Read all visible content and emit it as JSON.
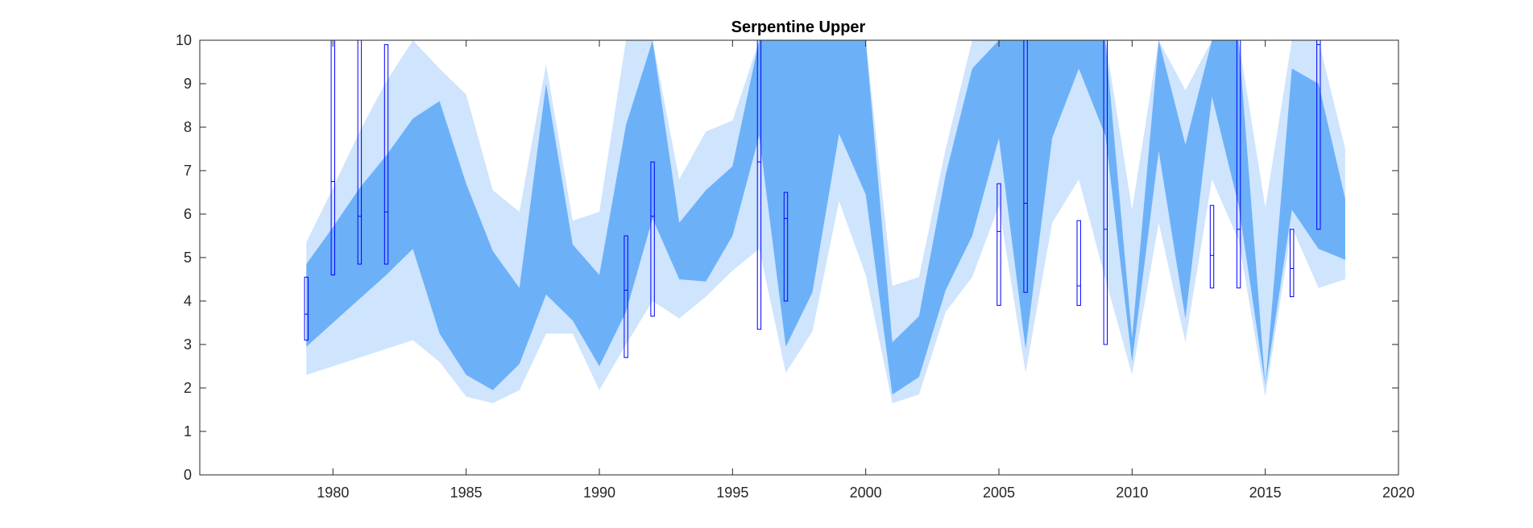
{
  "chart_data": {
    "type": "area",
    "title": "Serpentine Upper",
    "xlabel": "",
    "ylabel": "",
    "xlim": [
      1975,
      2020
    ],
    "ylim": [
      0,
      10
    ],
    "xticks": [
      1980,
      1985,
      1990,
      1995,
      2000,
      2005,
      2010,
      2015,
      2020
    ],
    "yticks": [
      0,
      1,
      2,
      3,
      4,
      5,
      6,
      7,
      8,
      9,
      10
    ],
    "grid": false,
    "colors": {
      "outer_band": "#cfe4fd",
      "inner_band": "#6cb1f8",
      "box": "#0000ff",
      "axis": "#262626"
    },
    "bands": {
      "x": [
        1979,
        1980,
        1981,
        1982,
        1983,
        1984,
        1985,
        1986,
        1987,
        1988,
        1989,
        1990,
        1991,
        1992,
        1993,
        1994,
        1995,
        1996,
        1997,
        1998,
        1999,
        2000,
        2001,
        2002,
        2003,
        2004,
        2005,
        2006,
        2007,
        2008,
        2009,
        2010,
        2011,
        2012,
        2013,
        2014,
        2015,
        2016,
        2017,
        2018
      ],
      "outer_low": [
        2.3,
        2.5,
        2.7,
        2.9,
        3.1,
        2.6,
        1.8,
        1.65,
        1.95,
        3.25,
        3.25,
        1.95,
        3.0,
        4.0,
        3.6,
        4.1,
        4.7,
        5.2,
        2.35,
        3.3,
        6.3,
        4.6,
        1.65,
        1.85,
        3.75,
        4.55,
        6.2,
        2.35,
        5.8,
        6.8,
        4.5,
        2.3,
        5.8,
        3.05,
        6.8,
        5.4,
        1.8,
        5.7,
        4.3,
        4.5
      ],
      "inner_low": [
        2.95,
        3.5,
        4.05,
        4.6,
        5.2,
        3.25,
        2.3,
        1.95,
        2.55,
        4.15,
        3.55,
        2.5,
        3.75,
        5.9,
        4.5,
        4.45,
        5.5,
        7.8,
        2.95,
        4.2,
        7.85,
        6.45,
        1.85,
        2.25,
        4.25,
        5.5,
        7.75,
        2.9,
        7.75,
        9.35,
        7.8,
        2.6,
        7.45,
        3.6,
        8.7,
        6.2,
        2.05,
        6.1,
        5.2,
        4.95
      ],
      "inner_high": [
        4.85,
        5.7,
        6.6,
        7.35,
        8.2,
        8.6,
        6.7,
        5.15,
        4.3,
        9.0,
        5.3,
        4.6,
        8.05,
        10.0,
        5.8,
        6.55,
        7.1,
        10.0,
        10.0,
        10.0,
        10.0,
        10.0,
        3.05,
        3.65,
        6.9,
        9.35,
        10.0,
        10.0,
        10.0,
        10.0,
        10.0,
        3.15,
        10.0,
        7.6,
        10.0,
        10.0,
        2.05,
        9.35,
        9.0,
        6.35
      ],
      "outer_high": [
        5.35,
        6.6,
        7.9,
        9.05,
        10.0,
        9.35,
        8.75,
        6.55,
        6.05,
        9.45,
        5.85,
        6.05,
        10.0,
        10.0,
        6.8,
        7.9,
        8.15,
        10.0,
        10.0,
        10.0,
        10.0,
        10.0,
        4.35,
        4.55,
        7.5,
        10.0,
        10.0,
        10.0,
        10.0,
        10.0,
        10.0,
        6.1,
        10.0,
        8.85,
        10.0,
        10.0,
        6.15,
        10.0,
        10.0,
        7.5
      ]
    },
    "boxes": [
      {
        "x": 1979,
        "low": 3.1,
        "median": 3.7,
        "high": 4.55
      },
      {
        "x": 1980,
        "low": 4.6,
        "median": 6.75,
        "high": 10.0
      },
      {
        "x": 1981,
        "low": 4.85,
        "median": 5.95,
        "high": 10.0
      },
      {
        "x": 1982,
        "low": 4.85,
        "median": 6.05,
        "high": 9.9
      },
      {
        "x": 1991,
        "low": 2.7,
        "median": 4.25,
        "high": 5.5
      },
      {
        "x": 1992,
        "low": 3.65,
        "median": 5.95,
        "high": 7.2
      },
      {
        "x": 1996,
        "low": 3.35,
        "median": 7.2,
        "high": 10.0
      },
      {
        "x": 1997,
        "low": 4.0,
        "median": 5.9,
        "high": 6.5
      },
      {
        "x": 2005,
        "low": 3.9,
        "median": 5.6,
        "high": 6.7
      },
      {
        "x": 2006,
        "low": 4.2,
        "median": 6.25,
        "high": 10.0
      },
      {
        "x": 2008,
        "low": 3.9,
        "median": 4.35,
        "high": 5.85
      },
      {
        "x": 2009,
        "low": 3.0,
        "median": 5.65,
        "high": 10.0
      },
      {
        "x": 2013,
        "low": 4.3,
        "median": 5.05,
        "high": 6.2
      },
      {
        "x": 2014,
        "low": 4.3,
        "median": 5.65,
        "high": 10.0
      },
      {
        "x": 2016,
        "low": 4.1,
        "median": 4.75,
        "high": 5.65
      },
      {
        "x": 2017,
        "low": 5.65,
        "median": 9.9,
        "high": 10.0
      }
    ]
  }
}
